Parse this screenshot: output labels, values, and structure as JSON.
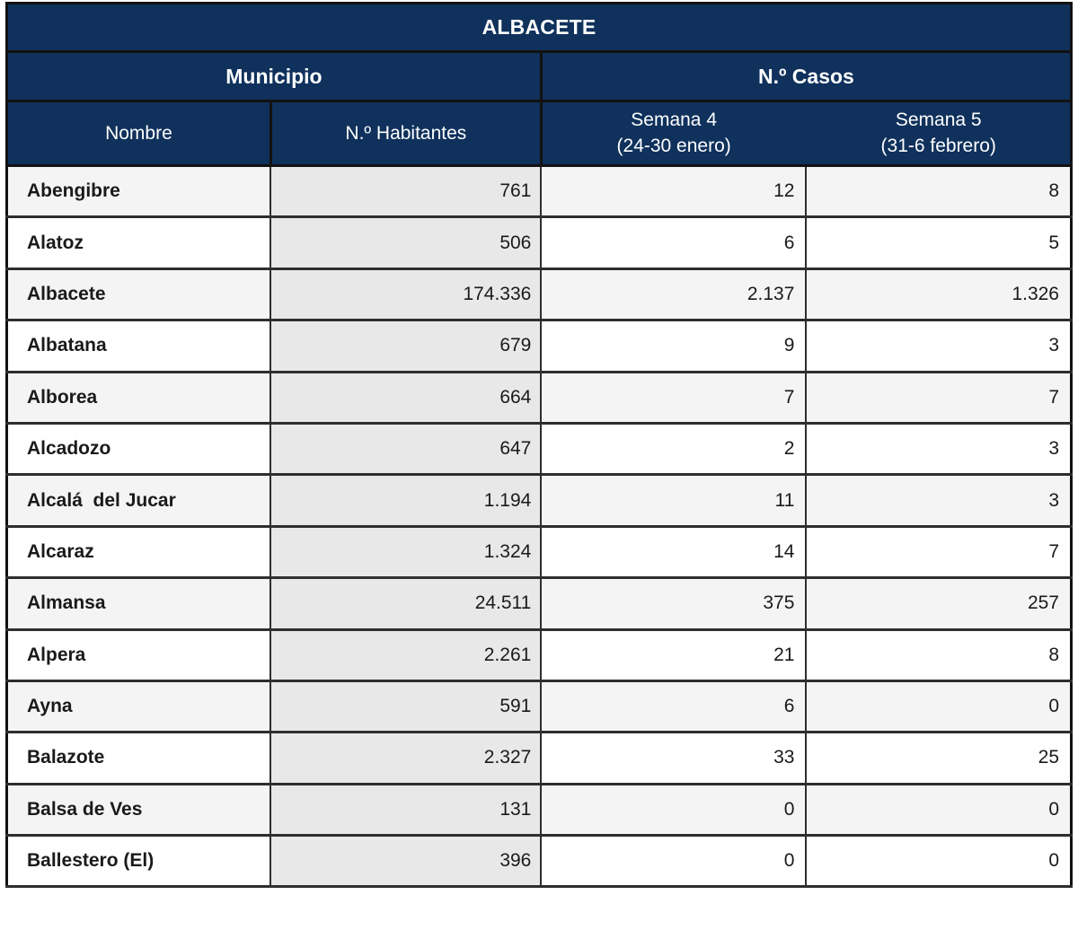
{
  "table": {
    "title": "ALBACETE",
    "group_headers": {
      "municipio": "Municipio",
      "casos": "N.º Casos"
    },
    "columns": {
      "nombre": "Nombre",
      "habitantes": "N.º Habitantes",
      "semana4_line1": "Semana 4",
      "semana4_line2": "(24-30 enero)",
      "semana5_line1": "Semana 5",
      "semana5_line2": "(31-6 febrero)"
    },
    "rows": [
      {
        "nombre": "Abengibre",
        "habitantes": "761",
        "semana4": "12",
        "semana5": "8"
      },
      {
        "nombre": "Alatoz",
        "habitantes": "506",
        "semana4": "6",
        "semana5": "5"
      },
      {
        "nombre": "Albacete",
        "habitantes": "174.336",
        "semana4": "2.137",
        "semana5": "1.326"
      },
      {
        "nombre": "Albatana",
        "habitantes": "679",
        "semana4": "9",
        "semana5": "3"
      },
      {
        "nombre": "Alborea",
        "habitantes": "664",
        "semana4": "7",
        "semana5": "7"
      },
      {
        "nombre": "Alcadozo",
        "habitantes": "647",
        "semana4": "2",
        "semana5": "3"
      },
      {
        "nombre": "Alcalá  del Jucar",
        "habitantes": "1.194",
        "semana4": "11",
        "semana5": "3"
      },
      {
        "nombre": "Alcaraz",
        "habitantes": "1.324",
        "semana4": "14",
        "semana5": "7"
      },
      {
        "nombre": "Almansa",
        "habitantes": "24.511",
        "semana4": "375",
        "semana5": "257"
      },
      {
        "nombre": "Alpera",
        "habitantes": "2.261",
        "semana4": "21",
        "semana5": "8"
      },
      {
        "nombre": "Ayna",
        "habitantes": "591",
        "semana4": "6",
        "semana5": "0"
      },
      {
        "nombre": "Balazote",
        "habitantes": "2.327",
        "semana4": "33",
        "semana5": "25"
      },
      {
        "nombre": "Balsa de Ves",
        "habitantes": "131",
        "semana4": "0",
        "semana5": "0"
      },
      {
        "nombre": "Ballestero (El)",
        "habitantes": "396",
        "semana4": "0",
        "semana5": "0"
      }
    ]
  },
  "colors": {
    "header_bg": "#0f315c",
    "header_text": "#ffffff",
    "row_odd_bg": "#f4f4f4",
    "row_even_bg": "#ffffff",
    "habitantes_bg": "#e8e8e8",
    "border": "#2e2e2e"
  }
}
